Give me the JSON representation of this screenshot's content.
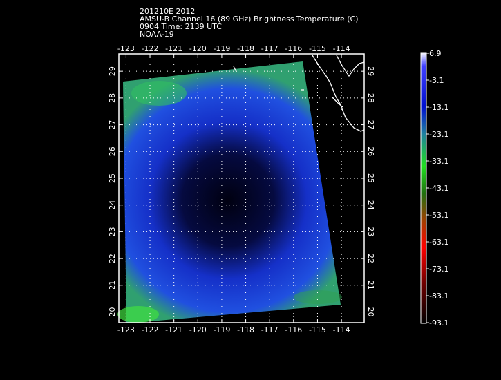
{
  "header": {
    "lines": [
      "201210E 2012",
      "AMSU-B Channel 16 (89 GHz) Brightness Temperature (C)",
      "0904 Time: 2139 UTC",
      "NOAA-19"
    ]
  },
  "map": {
    "lon_lim": [
      -123.3,
      -113.05
    ],
    "lat_lim": [
      19.6,
      29.65
    ],
    "lon_ticks": [
      -123,
      -122,
      -121,
      -120,
      -119,
      -118,
      -117,
      -116,
      -115,
      -114
    ],
    "lat_ticks": [
      20,
      21,
      22,
      23,
      24,
      25,
      26,
      27,
      28,
      29
    ],
    "grid": true
  },
  "colorbar": {
    "lim": [
      -93.1,
      6.9
    ],
    "ticks": [
      6.9,
      -3.1,
      -13.1,
      -23.1,
      -33.1,
      -43.1,
      -53.1,
      -63.1,
      -73.1,
      -83.1,
      -93.1
    ]
  }
}
